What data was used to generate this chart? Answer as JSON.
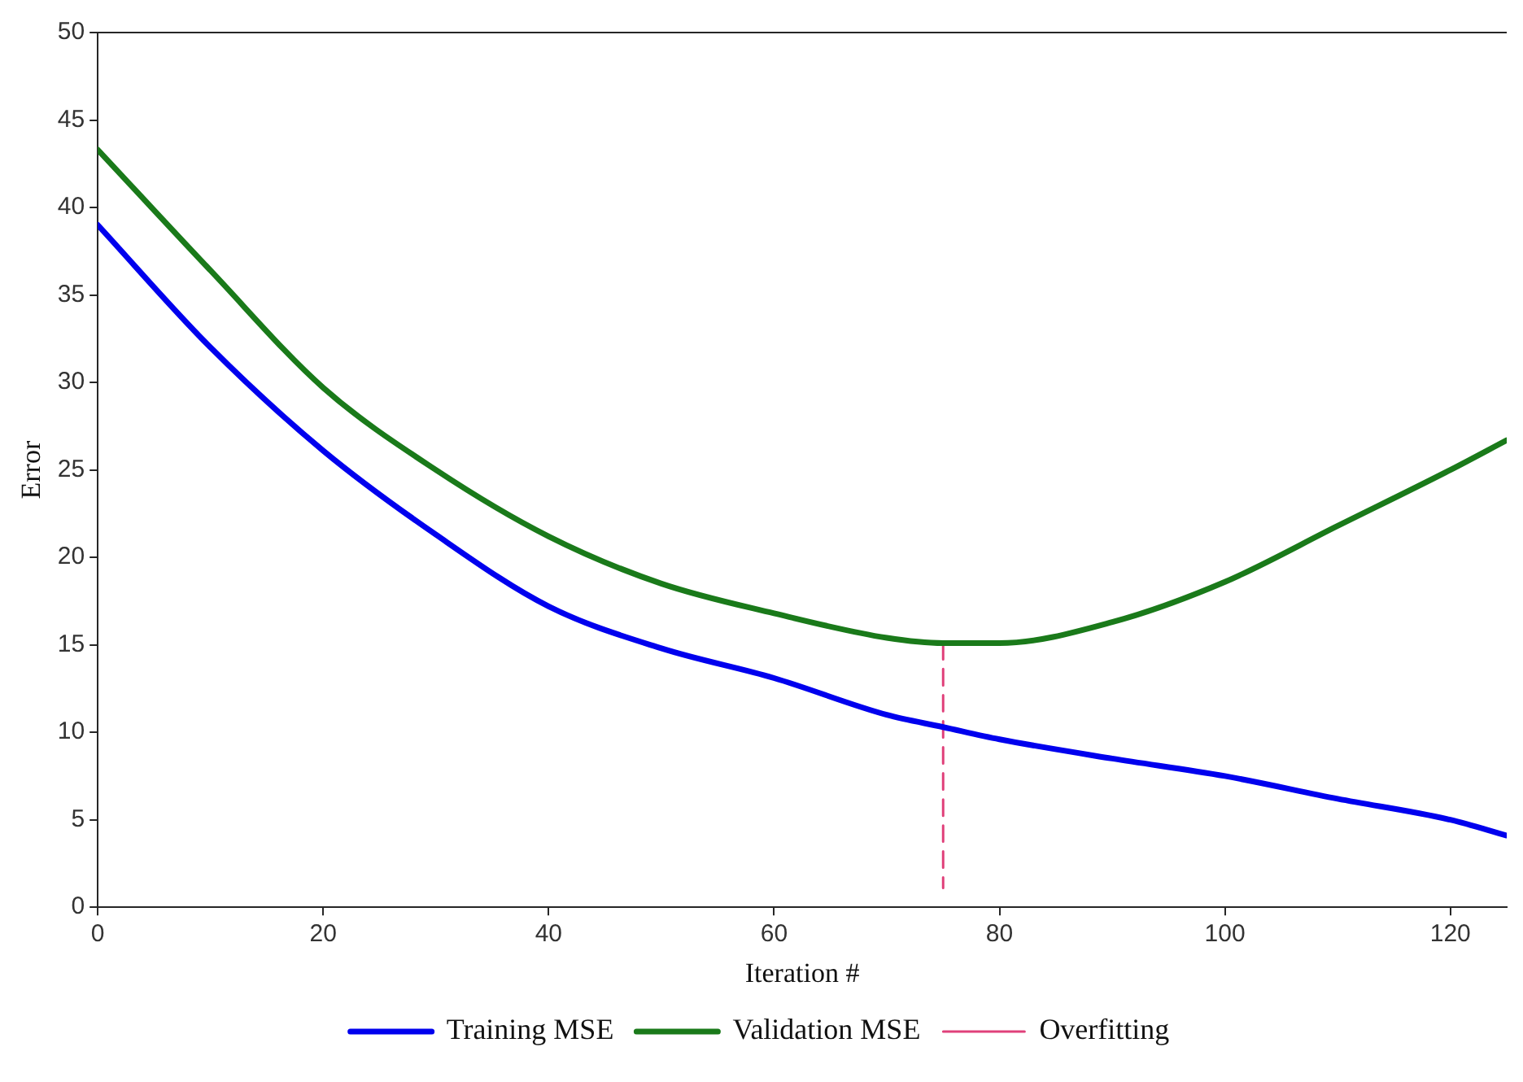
{
  "chart_data": {
    "type": "line",
    "xlabel": "Iteration #",
    "ylabel": "Error",
    "xlim": [
      0,
      125
    ],
    "xticks": [
      0,
      20,
      40,
      60,
      80,
      100,
      120
    ],
    "ylim": [
      0,
      50
    ],
    "yticks": [
      0,
      5,
      10,
      15,
      20,
      25,
      30,
      35,
      40,
      45,
      50
    ],
    "grid": false,
    "legend": "bottom",
    "marker": "none",
    "series": [
      {
        "name": "Training MSE",
        "color": "#0000ee",
        "line_style": "solid",
        "x": [
          0,
          10,
          20,
          30,
          40,
          50,
          60,
          70,
          75,
          80,
          90,
          100,
          110,
          120,
          125
        ],
        "values": [
          39,
          32,
          26.1,
          21.3,
          17.2,
          14.8,
          13.1,
          11,
          10.3,
          9.6,
          8.5,
          7.5,
          6.2,
          5,
          4.1
        ]
      },
      {
        "name": "Validation MSE",
        "color": "#1a7a1a",
        "line_style": "solid",
        "x": [
          0,
          10,
          20,
          30,
          40,
          50,
          60,
          70,
          75,
          80,
          90,
          100,
          110,
          120,
          125
        ],
        "values": [
          43.3,
          36.4,
          29.7,
          25,
          21.2,
          18.5,
          16.8,
          15.4,
          15.1,
          15.1,
          16.3,
          18.6,
          21.8,
          25,
          26.7
        ]
      },
      {
        "name": "Overfitting",
        "color": "#e0407a",
        "line_style": "dashed",
        "x": [
          75,
          75
        ],
        "values": [
          15.1,
          1.1
        ]
      }
    ]
  }
}
